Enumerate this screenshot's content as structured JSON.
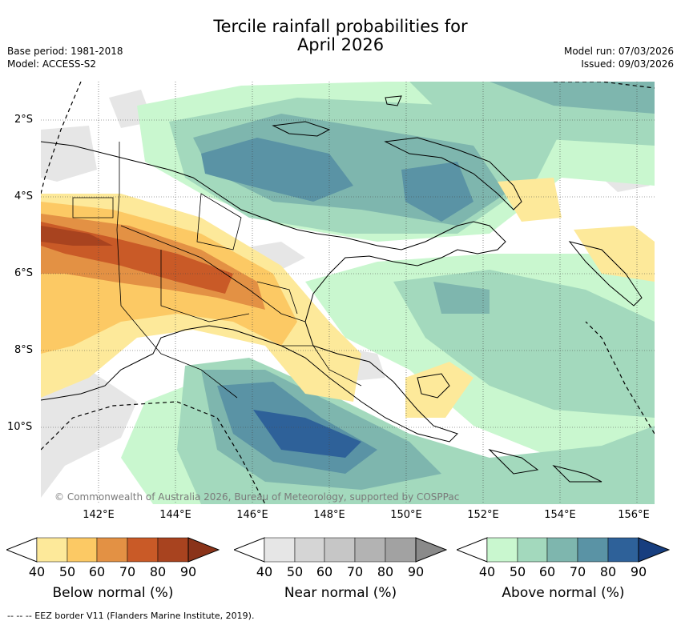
{
  "title": {
    "line1": "Tercile rainfall probabilities for",
    "line2": "April 2026"
  },
  "meta_left": {
    "base_period": "Base period: 1981-2018",
    "model": "Model: ACCESS-S2"
  },
  "meta_right": {
    "model_run": "Model run: 07/03/2026",
    "issued": "Issued: 09/03/2026"
  },
  "axes": {
    "lat_labels": [
      "2°S",
      "4°S",
      "6°S",
      "8°S",
      "10°S"
    ],
    "lon_labels": [
      "142°E",
      "144°E",
      "146°E",
      "148°E",
      "150°E",
      "152°E",
      "154°E",
      "156°E"
    ],
    "lon_range": [
      140.5,
      156.5
    ],
    "lat_range": [
      -12,
      -1
    ]
  },
  "copyright": "© Commonwealth of Australia 2026, Bureau of Meteorology, supported by COSPPac",
  "colorbars": [
    {
      "label": "Below normal (%)",
      "ticks": [
        "40",
        "50",
        "60",
        "70",
        "80",
        "90"
      ],
      "colors": [
        "#ffffff",
        "#fde99a",
        "#fcc964",
        "#e39144",
        "#c95a27",
        "#a8431f",
        "#8a3319"
      ]
    },
    {
      "label": "Near normal (%)",
      "ticks": [
        "40",
        "50",
        "60",
        "70",
        "80",
        "90"
      ],
      "colors": [
        "#ffffff",
        "#e6e6e6",
        "#d5d5d5",
        "#c6c6c6",
        "#b3b3b3",
        "#a2a2a2",
        "#8a8a8a"
      ]
    },
    {
      "label": "Above normal (%)",
      "ticks": [
        "40",
        "50",
        "60",
        "70",
        "80",
        "90"
      ],
      "colors": [
        "#ffffff",
        "#c9f7cf",
        "#a3d9bd",
        "#7eb6ae",
        "#5a93a5",
        "#2e6199",
        "#173e7f"
      ]
    }
  ],
  "footer": "--  --  -- EEZ border V11 (Flanders Marine Institute, 2019)."
}
